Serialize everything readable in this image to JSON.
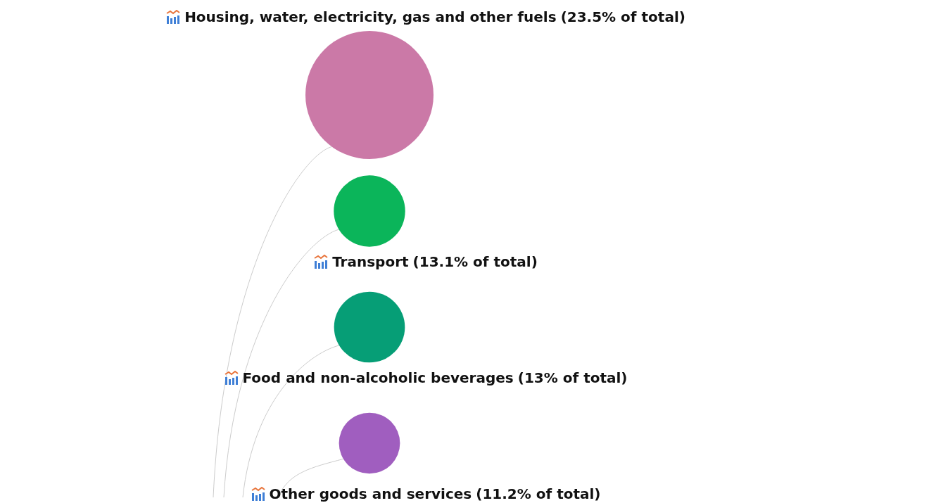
{
  "chart_data": {
    "type": "other",
    "categories": [
      "Housing, water, electricity, gas and other fuels",
      "Transport",
      "Food and non-alcoholic beverages",
      "Other goods and services"
    ],
    "values": [
      23.5,
      13.1,
      13,
      11.2
    ],
    "value_labels": [
      "(23.5% of total)",
      "(13.1% of total)",
      "(13% of total)",
      "(11.2% of total)"
    ],
    "colors": [
      "#cb79a7",
      "#0bb55a",
      "#069e76",
      "#a05ebf"
    ]
  }
}
